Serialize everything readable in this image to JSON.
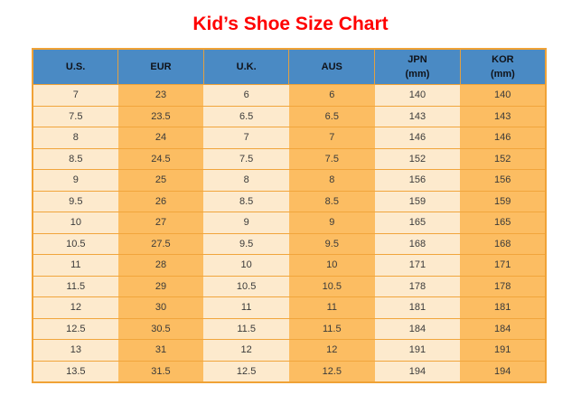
{
  "page": {
    "title": "Kid’s Shoe Size Chart"
  },
  "table": {
    "columns": [
      {
        "label": "U.S.",
        "sub": ""
      },
      {
        "label": "EUR",
        "sub": ""
      },
      {
        "label": "U.K.",
        "sub": ""
      },
      {
        "label": "AUS",
        "sub": ""
      },
      {
        "label": "JPN",
        "sub": "(mm)"
      },
      {
        "label": "KOR",
        "sub": "(mm)"
      }
    ]
  },
  "colors": {
    "title_text": "#ff0000",
    "header_bg": "#4a8ac4",
    "header_text": "#101218",
    "cell_light_bg": "#fdeacd",
    "cell_orange_bg": "#fcbd62",
    "grid_border": "#f0a236",
    "cell_text": "#3a3a3a"
  },
  "chart_data": {
    "type": "table",
    "title": "Kid’s Shoe Size Chart",
    "columns": [
      "U.S.",
      "EUR",
      "U.K.",
      "AUS",
      "JPN (mm)",
      "KOR (mm)"
    ],
    "rows": [
      [
        "7",
        "23",
        "6",
        "6",
        "140",
        "140"
      ],
      [
        "7.5",
        "23.5",
        "6.5",
        "6.5",
        "143",
        "143"
      ],
      [
        "8",
        "24",
        "7",
        "7",
        "146",
        "146"
      ],
      [
        "8.5",
        "24.5",
        "7.5",
        "7.5",
        "152",
        "152"
      ],
      [
        "9",
        "25",
        "8",
        "8",
        "156",
        "156"
      ],
      [
        "9.5",
        "26",
        "8.5",
        "8.5",
        "159",
        "159"
      ],
      [
        "10",
        "27",
        "9",
        "9",
        "165",
        "165"
      ],
      [
        "10.5",
        "27.5",
        "9.5",
        "9.5",
        "168",
        "168"
      ],
      [
        "11",
        "28",
        "10",
        "10",
        "171",
        "171"
      ],
      [
        "11.5",
        "29",
        "10.5",
        "10.5",
        "178",
        "178"
      ],
      [
        "12",
        "30",
        "11",
        "11",
        "181",
        "181"
      ],
      [
        "12.5",
        "30.5",
        "11.5",
        "11.5",
        "184",
        "184"
      ],
      [
        "13",
        "31",
        "12",
        "12",
        "191",
        "191"
      ],
      [
        "13.5",
        "31.5",
        "12.5",
        "12.5",
        "194",
        "194"
      ]
    ]
  }
}
